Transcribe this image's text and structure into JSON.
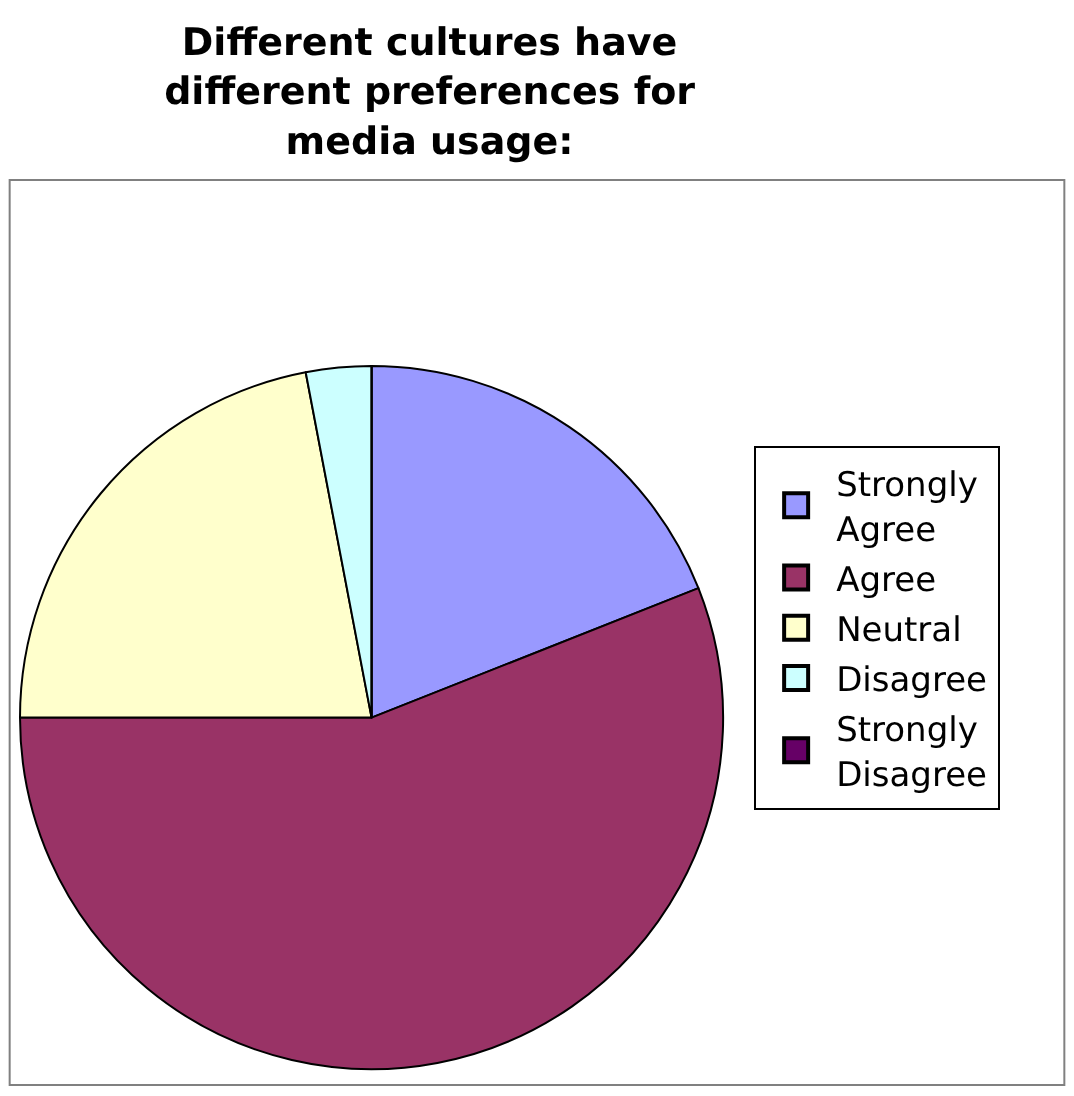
{
  "chart_data": {
    "type": "pie",
    "title": "Different cultures have different preferences for media usage:",
    "categories": [
      "Strongly Agree",
      "Agree",
      "Neutral",
      "Disagree",
      "Strongly Disagree"
    ],
    "values": [
      19,
      56,
      22,
      3,
      0
    ],
    "colors": [
      "#9999ff",
      "#993366",
      "#ffffcc",
      "#ccffff",
      "#660066"
    ],
    "legend": "right"
  }
}
